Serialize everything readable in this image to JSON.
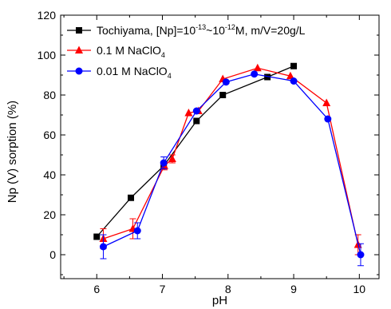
{
  "chart_data": {
    "type": "line",
    "xlabel": "pH",
    "ylabel": "Np (V) sorption (%)",
    "xlim": [
      5.45,
      10.3
    ],
    "ylim": [
      -12,
      120
    ],
    "xticks": [
      6,
      7,
      8,
      9,
      10
    ],
    "yticks": [
      0,
      20,
      40,
      60,
      80,
      100,
      120
    ],
    "grid": false,
    "legend_position": "top-left",
    "series": [
      {
        "name": "Tochiyama, [Np]=10-13~10-12M, m/V=20g/L",
        "legend_parts": {
          "prefix": "Tochiyama, [Np]=10",
          "exp1": "-13",
          "middle": "~10",
          "exp2": "-12",
          "suffix": "M, m/V=20g/L"
        },
        "color": "#000000",
        "marker": "square",
        "points": [
          {
            "x": 6.0,
            "y": 9
          },
          {
            "x": 6.52,
            "y": 28.5
          },
          {
            "x": 7.02,
            "y": 44.5
          },
          {
            "x": 7.52,
            "y": 67
          },
          {
            "x": 7.92,
            "y": 80
          },
          {
            "x": 8.6,
            "y": 89
          },
          {
            "x": 9.0,
            "y": 94.5
          }
        ]
      },
      {
        "name": "0.1 M NaClO4",
        "legend_parts": {
          "prefix": "0.1 M NaClO",
          "sub": "4"
        },
        "color": "#ff0000",
        "marker": "triangle",
        "points": [
          {
            "x": 6.1,
            "y": 8,
            "err": 5
          },
          {
            "x": 6.55,
            "y": 13,
            "err": 5
          },
          {
            "x": 7.03,
            "y": 44.5,
            "err": 2
          },
          {
            "x": 7.15,
            "y": 48,
            "err": 2
          },
          {
            "x": 7.4,
            "y": 71
          },
          {
            "x": 7.55,
            "y": 72
          },
          {
            "x": 7.92,
            "y": 88
          },
          {
            "x": 8.45,
            "y": 93.5
          },
          {
            "x": 8.95,
            "y": 89.5
          },
          {
            "x": 9.5,
            "y": 76
          },
          {
            "x": 9.98,
            "y": 5,
            "err": 5
          }
        ]
      },
      {
        "name": "0.01 M NaClO4",
        "legend_parts": {
          "prefix": "0.01 M NaClO",
          "sub": "4"
        },
        "color": "#0000ff",
        "marker": "circle",
        "points": [
          {
            "x": 6.1,
            "y": 4,
            "err": 6
          },
          {
            "x": 6.62,
            "y": 12,
            "err": 4
          },
          {
            "x": 7.02,
            "y": 46,
            "err": 3
          },
          {
            "x": 7.52,
            "y": 72
          },
          {
            "x": 7.97,
            "y": 86.5
          },
          {
            "x": 8.4,
            "y": 90.5
          },
          {
            "x": 9.0,
            "y": 87
          },
          {
            "x": 9.52,
            "y": 68
          },
          {
            "x": 10.02,
            "y": 0,
            "err": 5.5
          }
        ]
      }
    ]
  }
}
